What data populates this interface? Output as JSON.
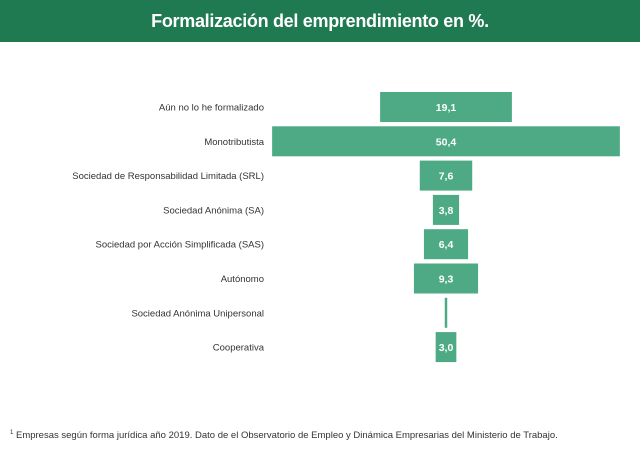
{
  "header": {
    "title": "Formalización del emprendimiento en %."
  },
  "chart_data": {
    "type": "bar",
    "orientation": "horizontal-centered",
    "categories": [
      "Aún no lo he formalizado",
      "Monotributista",
      "Sociedad de Responsabilidad Limitada (SRL)",
      "Sociedad Anónima (SA)",
      "Sociedad por Acción Simplificada (SAS)",
      "Autónomo",
      "Sociedad Anónima Unipersonal",
      "Cooperativa"
    ],
    "values": [
      19.1,
      50.4,
      7.6,
      3.8,
      6.4,
      9.3,
      0.3,
      3.0
    ],
    "value_labels": [
      "19,1",
      "50,4",
      "7,6",
      "3,8",
      "6,4",
      "9,3",
      "",
      "3,0"
    ],
    "bar_color": "#4daa85",
    "label_color": "#ffffff"
  },
  "footnote": {
    "marker": "1",
    "text": "Empresas según forma jurídica año 2019. Dato de el Observatorio de Empleo y Dinámica Empresarias del Ministerio de Trabajo."
  }
}
